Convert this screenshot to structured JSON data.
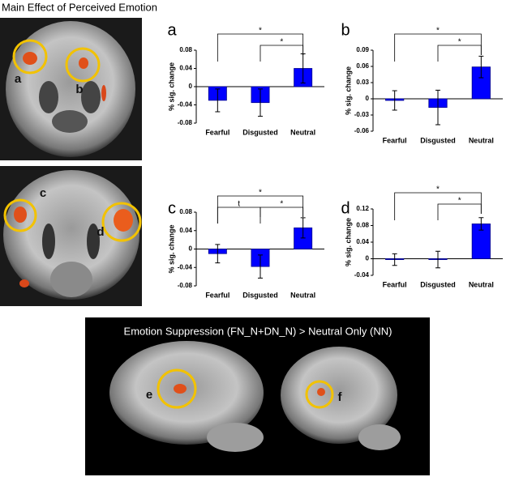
{
  "title": "Main Effect of Perceived Emotion",
  "brain_labels": [
    "a",
    "b",
    "c",
    "d"
  ],
  "bottom_panel": {
    "title": "Emotion Suppression (FN_N+DN_N) > Neutral Only (NN)",
    "labels": [
      "e",
      "f"
    ]
  },
  "chart_data": [
    {
      "type": "bar",
      "panel_label": "a",
      "y_label": "% sig. change",
      "categories": [
        "Fearful",
        "Disgusted",
        "Neutral"
      ],
      "values": [
        -0.03,
        -0.035,
        0.04
      ],
      "errors": [
        0.025,
        0.03,
        0.032
      ],
      "color": "#0000ff",
      "ylim": [
        -0.08,
        0.08
      ],
      "yticks": [
        -0.08,
        -0.04,
        0,
        0.04,
        0.08
      ],
      "annotations": [
        {
          "text": "*",
          "between": [
            "Fearful",
            "Neutral"
          ]
        },
        {
          "text": "*",
          "between": [
            "Disgusted",
            "Neutral"
          ]
        }
      ]
    },
    {
      "type": "bar",
      "panel_label": "b",
      "y_label": "% sig. change",
      "categories": [
        "Fearful",
        "Disgusted",
        "Neutral"
      ],
      "values": [
        -0.003,
        -0.016,
        0.059
      ],
      "errors": [
        0.018,
        0.032,
        0.02
      ],
      "color": "#0000ff",
      "ylim": [
        -0.06,
        0.09
      ],
      "yticks": [
        -0.06,
        -0.03,
        0,
        0.03,
        0.06,
        0.09
      ],
      "annotations": [
        {
          "text": "*",
          "between": [
            "Fearful",
            "Neutral"
          ]
        },
        {
          "text": "*",
          "between": [
            "Disgusted",
            "Neutral"
          ]
        }
      ]
    },
    {
      "type": "bar",
      "panel_label": "c",
      "y_label": "% sig. change",
      "categories": [
        "Fearful",
        "Disgusted",
        "Neutral"
      ],
      "values": [
        -0.01,
        -0.038,
        0.046
      ],
      "errors": [
        0.02,
        0.025,
        0.022
      ],
      "color": "#0000ff",
      "ylim": [
        -0.08,
        0.08
      ],
      "yticks": [
        -0.08,
        -0.04,
        0,
        0.04,
        0.08
      ],
      "annotations": [
        {
          "text": "t",
          "between": [
            "Fearful",
            "Disgusted"
          ]
        },
        {
          "text": "*",
          "between": [
            "Fearful",
            "Neutral"
          ]
        },
        {
          "text": "*",
          "between": [
            "Disgusted",
            "Neutral"
          ]
        }
      ]
    },
    {
      "type": "bar",
      "panel_label": "d",
      "y_label": "% sig. change",
      "categories": [
        "Fearful",
        "Disgusted",
        "Neutral"
      ],
      "values": [
        -0.002,
        -0.002,
        0.084
      ],
      "errors": [
        0.014,
        0.02,
        0.015
      ],
      "color": "#0000ff",
      "ylim": [
        -0.04,
        0.12
      ],
      "yticks": [
        -0.04,
        0,
        0.04,
        0.08,
        0.12
      ],
      "annotations": [
        {
          "text": "*",
          "between": [
            "Fearful",
            "Neutral"
          ]
        },
        {
          "text": "*",
          "between": [
            "Disgusted",
            "Neutral"
          ]
        }
      ]
    }
  ]
}
